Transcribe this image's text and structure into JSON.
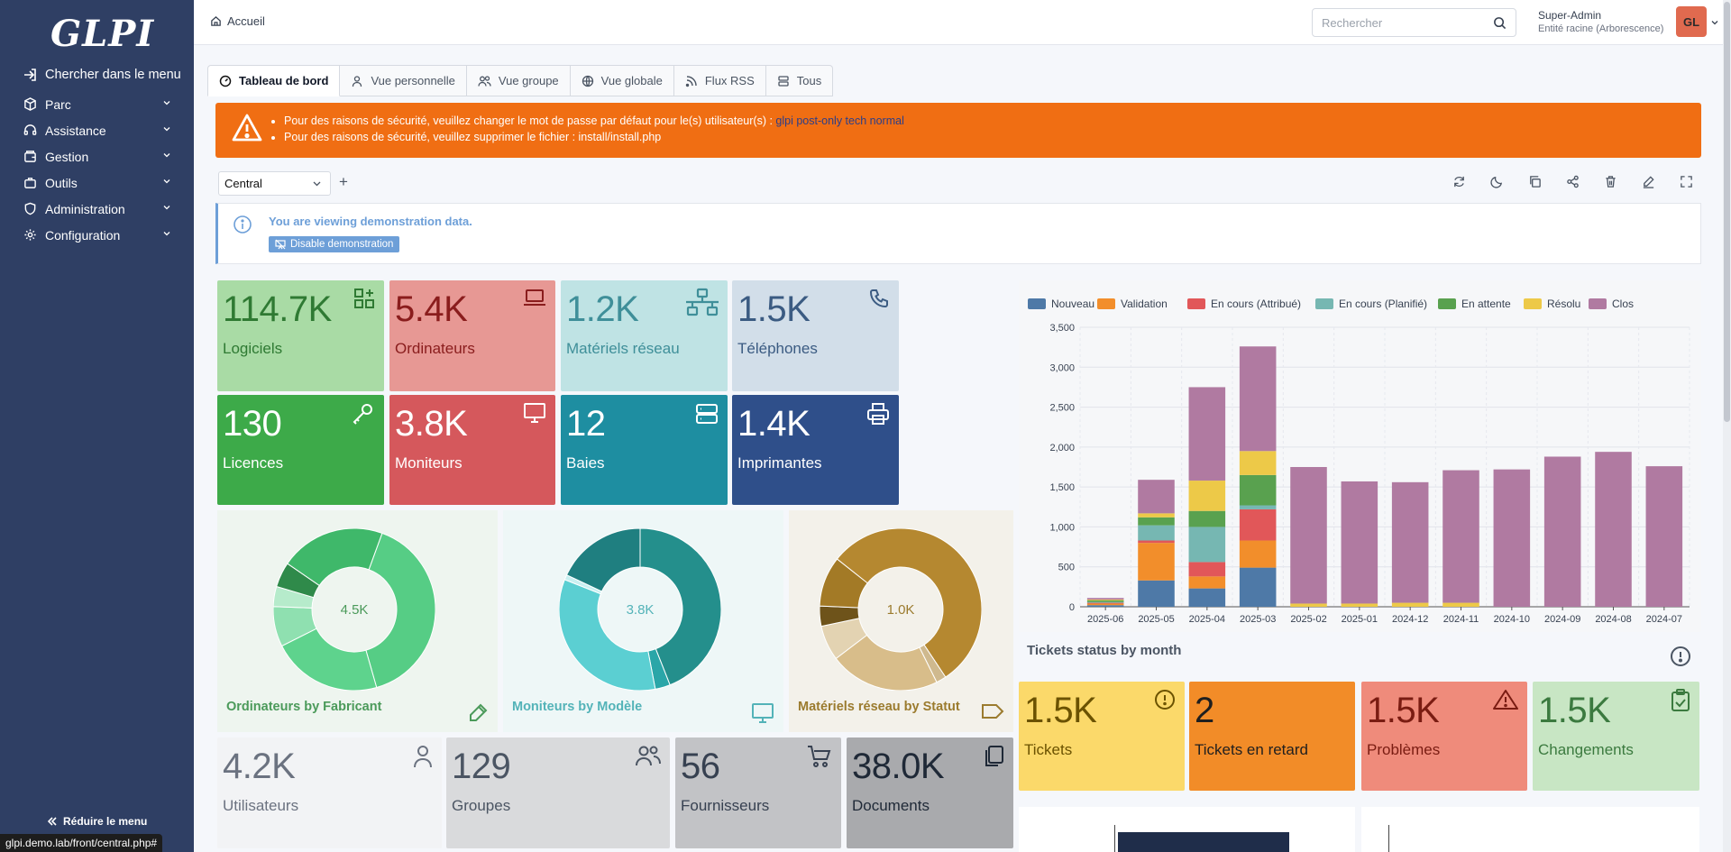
{
  "sidebar": {
    "logo": "GLPI",
    "search_label": "Chercher dans le menu",
    "items": [
      {
        "label": "Parc",
        "icon": "box-icon"
      },
      {
        "label": "Assistance",
        "icon": "headset-icon"
      },
      {
        "label": "Gestion",
        "icon": "wallet-icon"
      },
      {
        "label": "Outils",
        "icon": "briefcase-icon"
      },
      {
        "label": "Administration",
        "icon": "shield-icon"
      },
      {
        "label": "Configuration",
        "icon": "gear-icon"
      }
    ],
    "reduce_label": "Réduire le menu"
  },
  "status_url": "glpi.demo.lab/front/central.php#",
  "topbar": {
    "breadcrumb": "Accueil",
    "search_placeholder": "Rechercher",
    "user_name": "Super-Admin",
    "user_entity": "Entité racine (Arborescence)",
    "avatar_initials": "GL"
  },
  "tabs": [
    {
      "label": "Tableau de bord",
      "active": true
    },
    {
      "label": "Vue personnelle"
    },
    {
      "label": "Vue groupe"
    },
    {
      "label": "Vue globale"
    },
    {
      "label": "Flux RSS"
    },
    {
      "label": "Tous"
    }
  ],
  "alert": {
    "line1_prefix": "Pour des raisons de sécurité, veuillez changer le mot de passe par défaut pour le(s) utilisateur(s) : ",
    "line1_users": "glpi post-only tech normal",
    "line2": "Pour des raisons de sécurité, veuillez supprimer le fichier : install/install.php"
  },
  "dashboard": {
    "selected": "Central",
    "add": "+"
  },
  "demo": {
    "text": "You are viewing demonstration data.",
    "button": "Disable demonstration"
  },
  "cards": [
    {
      "num": "114.7K",
      "label": "Logiciels",
      "bg": "#a9dba5",
      "fg": "#2f7a33",
      "icon": "apps-add-icon"
    },
    {
      "num": "5.4K",
      "label": "Ordinateurs",
      "bg": "#e79894",
      "fg": "#8a1d1d",
      "icon": "laptop-icon"
    },
    {
      "num": "1.2K",
      "label": "Matériels réseau",
      "bg": "#bfe3e4",
      "fg": "#3f8f99",
      "icon": "network-icon"
    },
    {
      "num": "1.5K",
      "label": "Téléphones",
      "bg": "#d2dee9",
      "fg": "#3b5b82",
      "icon": "phone-icon"
    },
    {
      "num": "130",
      "label": "Licences",
      "bg": "#3daa49",
      "fg": "#ffffff",
      "icon": "key-icon"
    },
    {
      "num": "3.8K",
      "label": "Moniteurs",
      "bg": "#d5585c",
      "fg": "#ffffff",
      "icon": "monitor-icon"
    },
    {
      "num": "12",
      "label": "Baies",
      "bg": "#1e8ea1",
      "fg": "#ffffff",
      "icon": "server-icon"
    },
    {
      "num": "1.4K",
      "label": "Imprimantes",
      "bg": "#2f4f8a",
      "fg": "#ffffff",
      "icon": "printer-icon"
    }
  ],
  "donuts": [
    {
      "title": "Ordinateurs by Fabricant",
      "center": "4.5K",
      "bg": "#eef5ef",
      "fg": "#4b9a5a",
      "icon": "edit-icon"
    },
    {
      "title": "Moniteurs by Modèle",
      "center": "3.8K",
      "bg": "#eef7f7",
      "fg": "#53b3b8",
      "icon": "monitor-icon"
    },
    {
      "title": "Matériels réseau by Statut",
      "center": "1.0K",
      "bg": "#f3f1ea",
      "fg": "#9b7b2e",
      "icon": "tag-icon"
    }
  ],
  "bottom_cards": [
    {
      "num": "4.2K",
      "label": "Utilisateurs",
      "bg": "#f2f3f5",
      "fg": "#6b7280",
      "icon": "user-icon"
    },
    {
      "num": "129",
      "label": "Groupes",
      "bg": "#d9dadc",
      "fg": "#4b5563",
      "icon": "users-icon"
    },
    {
      "num": "56",
      "label": "Fournisseurs",
      "bg": "#c2c3c6",
      "fg": "#374151",
      "icon": "cart-icon"
    },
    {
      "num": "38.0K",
      "label": "Documents",
      "bg": "#a9aaad",
      "fg": "#1f2937",
      "icon": "files-icon"
    }
  ],
  "ticket_cards": [
    {
      "num": "1.5K",
      "label": "Tickets",
      "bg": "#fbd96a",
      "fg": "#6b5200",
      "icon": "alert-circle-icon"
    },
    {
      "num": "2",
      "label": "Tickets en retard",
      "bg": "#f28c28",
      "fg": "#1f1f1f",
      "icon": ""
    },
    {
      "num": "1.5K",
      "label": "Problèmes",
      "bg": "#ef8b7b",
      "fg": "#7a1c12",
      "icon": "alert-triangle-icon"
    },
    {
      "num": "1.5K",
      "label": "Changements",
      "bg": "#c8e6c4",
      "fg": "#3b7a3f",
      "icon": "clipboard-check-icon"
    }
  ],
  "chart_title": "Tickets status by month",
  "chart_data": {
    "type": "bar",
    "stacked": true,
    "categories": [
      "2025-06",
      "2025-05",
      "2025-04",
      "2025-03",
      "2025-02",
      "2025-01",
      "2024-12",
      "2024-11",
      "2024-10",
      "2024-09",
      "2024-08",
      "2024-07"
    ],
    "ylim": [
      0,
      3500
    ],
    "yticks": [
      "0",
      "500",
      "1,000",
      "1,500",
      "2,000",
      "2,500",
      "3,000",
      "3,500"
    ],
    "legend_position": "top-left",
    "grid": true,
    "series": [
      {
        "name": "Nouveau",
        "color": "#4e79a7",
        "values": [
          20,
          330,
          230,
          490,
          0,
          0,
          0,
          0,
          0,
          0,
          0,
          0
        ]
      },
      {
        "name": "Validation",
        "color": "#f28e2b",
        "values": [
          20,
          470,
          150,
          340,
          0,
          0,
          0,
          0,
          0,
          0,
          0,
          0
        ]
      },
      {
        "name": "En cours (Attribué)",
        "color": "#e15759",
        "values": [
          10,
          30,
          180,
          390,
          0,
          0,
          0,
          0,
          0,
          0,
          0,
          0
        ]
      },
      {
        "name": "En cours (Planifié)",
        "color": "#76b7b2",
        "values": [
          10,
          190,
          440,
          50,
          0,
          0,
          0,
          0,
          0,
          0,
          0,
          0
        ]
      },
      {
        "name": "En attente",
        "color": "#59a14f",
        "values": [
          20,
          100,
          200,
          380,
          0,
          0,
          0,
          0,
          0,
          0,
          0,
          0
        ]
      },
      {
        "name": "Résolu",
        "color": "#edc948",
        "values": [
          10,
          50,
          380,
          300,
          40,
          40,
          50,
          50,
          0,
          0,
          0,
          0
        ]
      },
      {
        "name": "Clos",
        "color": "#b07aa1",
        "values": [
          20,
          420,
          1170,
          1310,
          1710,
          1530,
          1510,
          1660,
          1720,
          1880,
          1940,
          1760
        ]
      }
    ]
  },
  "colors": {
    "sidebar": "#2f3f64",
    "accent": "#f06e13",
    "info": "#6d9fd8"
  }
}
